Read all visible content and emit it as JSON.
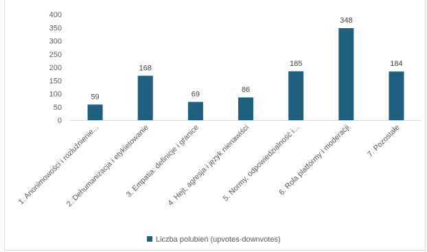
{
  "chart_data": {
    "type": "bar",
    "categories": [
      "1. Anonimowości i rozluźnienie...",
      "2. Dehumanizacja i etykietowanie",
      "3. Empatia: definicje i granice",
      "4. Hejt, agresja i język nienawiści",
      "5. Normy, odpowiedzialność i...",
      "6. Rola platformy i moderacji",
      "7. Pozostałe"
    ],
    "series": [
      {
        "name": "Liczba polubień (upvotes-downvotes)",
        "values": [
          59,
          168,
          69,
          86,
          185,
          348,
          184
        ],
        "color": "#1f5f80"
      }
    ],
    "y_ticks": [
      "0",
      "50",
      "100",
      "150",
      "200",
      "250",
      "300",
      "350",
      "400"
    ],
    "ylim": [
      0,
      400
    ],
    "grid": false,
    "legend_position": "bottom",
    "data_labels": true
  }
}
